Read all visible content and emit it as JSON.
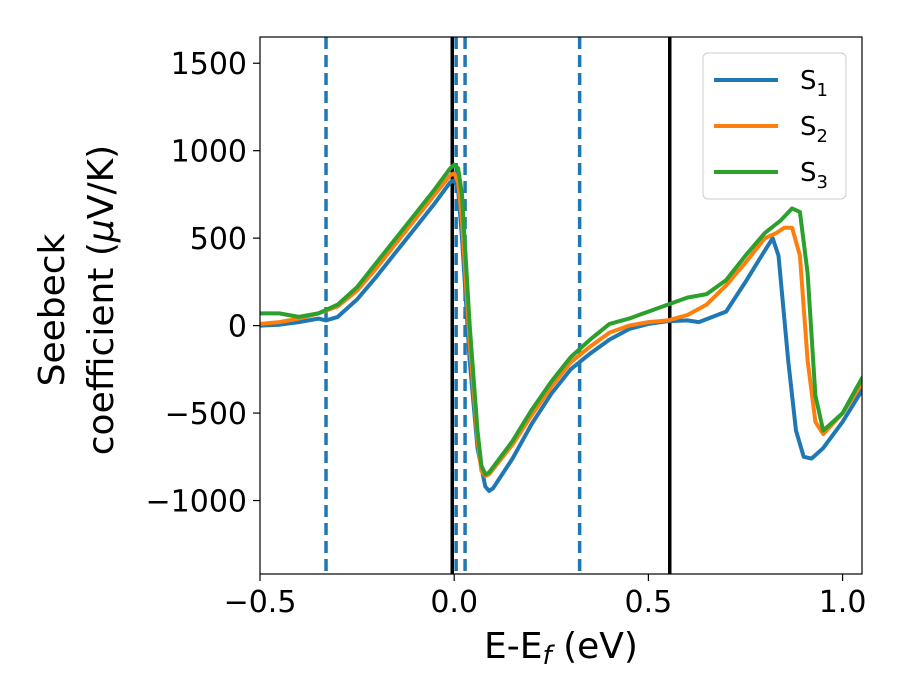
{
  "chart_data": {
    "type": "line",
    "xlabel": {
      "main": "E-E",
      "sub": "f",
      "suffix": " (eV)"
    },
    "ylabel": {
      "line1": "Seebeck",
      "line2": "coefficient  (",
      "mu": "μ",
      "line2_end": "V/K)"
    },
    "xlim": [
      -0.5,
      1.05
    ],
    "ylim": [
      -1420,
      1650
    ],
    "x_ticks": [
      {
        "value": -0.5,
        "label": "−0.5"
      },
      {
        "value": 0.0,
        "label": "0.0"
      },
      {
        "value": 0.5,
        "label": "0.5"
      },
      {
        "value": 1.0,
        "label": "1.0"
      }
    ],
    "y_ticks": [
      {
        "value": -1000,
        "label": "−1000"
      },
      {
        "value": -500,
        "label": "−500"
      },
      {
        "value": 0,
        "label": "0"
      },
      {
        "value": 500,
        "label": "500"
      },
      {
        "value": 1000,
        "label": "1000"
      },
      {
        "value": 1500,
        "label": "1500"
      }
    ],
    "grid": false,
    "legend_position": "top-right",
    "vertical_lines": [
      {
        "x": -0.33,
        "style": "dashed",
        "color": "#1f77b4"
      },
      {
        "x": -0.005,
        "style": "solid",
        "color": "#000000"
      },
      {
        "x": 0.005,
        "style": "dashed",
        "color": "#1f77b4"
      },
      {
        "x": 0.028,
        "style": "dashed",
        "color": "#1f77b4"
      },
      {
        "x": 0.323,
        "style": "dashed",
        "color": "#1f77b4"
      },
      {
        "x": 0.555,
        "style": "solid",
        "color": "#000000"
      }
    ],
    "series": [
      {
        "name": "S",
        "sub": "1",
        "color": "#1f77b4",
        "points": [
          [
            -0.5,
            0
          ],
          [
            -0.45,
            5
          ],
          [
            -0.4,
            20
          ],
          [
            -0.35,
            40
          ],
          [
            -0.33,
            30
          ],
          [
            -0.3,
            50
          ],
          [
            -0.25,
            150
          ],
          [
            -0.2,
            280
          ],
          [
            -0.15,
            420
          ],
          [
            -0.1,
            560
          ],
          [
            -0.05,
            700
          ],
          [
            -0.01,
            820
          ],
          [
            0.0,
            830
          ],
          [
            0.01,
            780
          ],
          [
            0.02,
            500
          ],
          [
            0.04,
            -200
          ],
          [
            0.06,
            -700
          ],
          [
            0.08,
            -920
          ],
          [
            0.09,
            -945
          ],
          [
            0.1,
            -930
          ],
          [
            0.15,
            -760
          ],
          [
            0.2,
            -560
          ],
          [
            0.25,
            -390
          ],
          [
            0.3,
            -250
          ],
          [
            0.35,
            -160
          ],
          [
            0.4,
            -80
          ],
          [
            0.45,
            -20
          ],
          [
            0.5,
            10
          ],
          [
            0.55,
            25
          ],
          [
            0.6,
            30
          ],
          [
            0.63,
            20
          ],
          [
            0.7,
            80
          ],
          [
            0.75,
            250
          ],
          [
            0.8,
            430
          ],
          [
            0.82,
            500
          ],
          [
            0.835,
            400
          ],
          [
            0.86,
            -200
          ],
          [
            0.88,
            -600
          ],
          [
            0.9,
            -750
          ],
          [
            0.92,
            -760
          ],
          [
            0.95,
            -700
          ],
          [
            1.0,
            -550
          ],
          [
            1.05,
            -370
          ]
        ]
      },
      {
        "name": "S",
        "sub": "2",
        "color": "#ff7f0e",
        "points": [
          [
            -0.5,
            10
          ],
          [
            -0.45,
            20
          ],
          [
            -0.4,
            40
          ],
          [
            -0.35,
            70
          ],
          [
            -0.3,
            110
          ],
          [
            -0.25,
            200
          ],
          [
            -0.2,
            330
          ],
          [
            -0.15,
            470
          ],
          [
            -0.1,
            610
          ],
          [
            -0.05,
            750
          ],
          [
            -0.01,
            860
          ],
          [
            0.0,
            870
          ],
          [
            0.01,
            820
          ],
          [
            0.02,
            600
          ],
          [
            0.04,
            -100
          ],
          [
            0.06,
            -650
          ],
          [
            0.07,
            -830
          ],
          [
            0.08,
            -860
          ],
          [
            0.09,
            -850
          ],
          [
            0.15,
            -680
          ],
          [
            0.2,
            -510
          ],
          [
            0.25,
            -350
          ],
          [
            0.3,
            -210
          ],
          [
            0.35,
            -120
          ],
          [
            0.4,
            -40
          ],
          [
            0.45,
            0
          ],
          [
            0.5,
            20
          ],
          [
            0.55,
            30
          ],
          [
            0.6,
            60
          ],
          [
            0.65,
            120
          ],
          [
            0.7,
            230
          ],
          [
            0.75,
            360
          ],
          [
            0.8,
            500
          ],
          [
            0.83,
            530
          ],
          [
            0.85,
            560
          ],
          [
            0.87,
            560
          ],
          [
            0.89,
            400
          ],
          [
            0.91,
            -200
          ],
          [
            0.93,
            -550
          ],
          [
            0.95,
            -620
          ],
          [
            1.0,
            -500
          ],
          [
            1.05,
            -330
          ]
        ]
      },
      {
        "name": "S",
        "sub": "3",
        "color": "#2ca02c",
        "points": [
          [
            -0.5,
            70
          ],
          [
            -0.45,
            70
          ],
          [
            -0.4,
            50
          ],
          [
            -0.35,
            70
          ],
          [
            -0.3,
            120
          ],
          [
            -0.25,
            220
          ],
          [
            -0.2,
            360
          ],
          [
            -0.15,
            500
          ],
          [
            -0.1,
            640
          ],
          [
            -0.05,
            780
          ],
          [
            -0.01,
            900
          ],
          [
            0.0,
            920
          ],
          [
            0.01,
            900
          ],
          [
            0.02,
            750
          ],
          [
            0.04,
            0
          ],
          [
            0.06,
            -600
          ],
          [
            0.07,
            -800
          ],
          [
            0.08,
            -850
          ],
          [
            0.09,
            -840
          ],
          [
            0.15,
            -660
          ],
          [
            0.2,
            -480
          ],
          [
            0.25,
            -320
          ],
          [
            0.3,
            -180
          ],
          [
            0.35,
            -80
          ],
          [
            0.4,
            10
          ],
          [
            0.45,
            40
          ],
          [
            0.5,
            80
          ],
          [
            0.55,
            120
          ],
          [
            0.6,
            160
          ],
          [
            0.65,
            180
          ],
          [
            0.7,
            260
          ],
          [
            0.75,
            400
          ],
          [
            0.8,
            530
          ],
          [
            0.84,
            600
          ],
          [
            0.87,
            670
          ],
          [
            0.89,
            650
          ],
          [
            0.91,
            300
          ],
          [
            0.93,
            -400
          ],
          [
            0.95,
            -600
          ],
          [
            1.0,
            -500
          ],
          [
            1.05,
            -300
          ]
        ]
      }
    ]
  }
}
